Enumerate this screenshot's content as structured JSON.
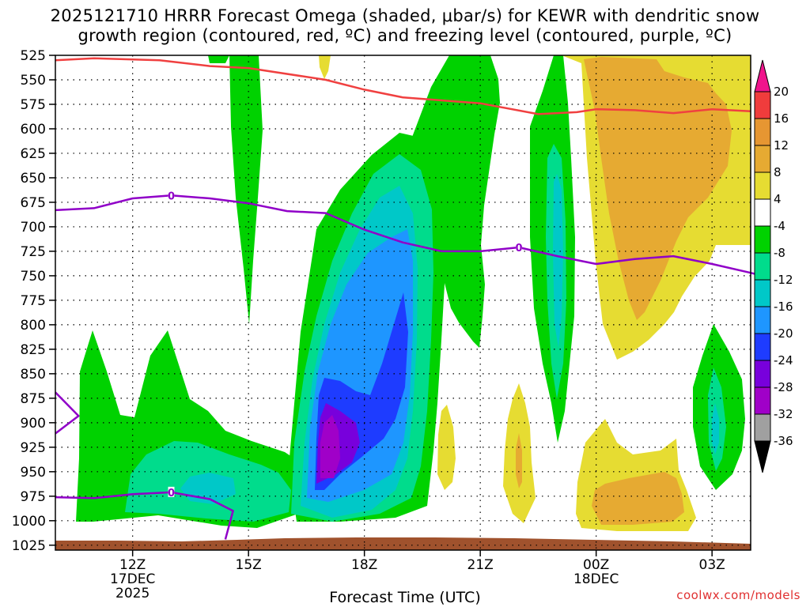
{
  "chart_data": {
    "type": "heatmap",
    "title_line1": "2025121710 HRRR Forecast Omega (shaded, μbar/s) for KEWR with dendritic snow",
    "title_line2": "growth region (contoured, red, ºC) and freezing level (contoured, purple, ºC)",
    "xlabel": "Forecast Time (UTC)",
    "credit": "coolwx.com/models",
    "x_range_hours": [
      10,
      28
    ],
    "x_ticks": [
      {
        "hour": 12,
        "label": "12Z",
        "sub1": "17DEC",
        "sub2": "2025"
      },
      {
        "hour": 15,
        "label": "15Z",
        "sub1": "",
        "sub2": ""
      },
      {
        "hour": 18,
        "label": "18Z",
        "sub1": "",
        "sub2": ""
      },
      {
        "hour": 21,
        "label": "21Z",
        "sub1": "",
        "sub2": ""
      },
      {
        "hour": 24,
        "label": "00Z",
        "sub1": "18DEC",
        "sub2": ""
      },
      {
        "hour": 27,
        "label": "03Z",
        "sub1": "",
        "sub2": ""
      }
    ],
    "y_range_mb": [
      525,
      1030
    ],
    "y_ticks": [
      525,
      550,
      575,
      600,
      625,
      650,
      675,
      700,
      725,
      750,
      775,
      800,
      825,
      850,
      875,
      900,
      925,
      950,
      975,
      1000,
      1025
    ],
    "colorbar": {
      "labels": [
        "20",
        "16",
        "12",
        "8",
        "4",
        "-4",
        "-8",
        "-12",
        "-16",
        "-20",
        "-24",
        "-28",
        "-32",
        "-36"
      ],
      "bins": [
        {
          "from": 16,
          "to": 20,
          "color": "#f03c3c"
        },
        {
          "from": 12,
          "to": 16,
          "color": "#e69632"
        },
        {
          "from": 8,
          "to": 12,
          "color": "#e6aa32"
        },
        {
          "from": 4,
          "to": 8,
          "color": "#e6dc32"
        },
        {
          "from": -4,
          "to": 4,
          "color": "#ffffff"
        },
        {
          "from": -8,
          "to": -4,
          "color": "#00d200"
        },
        {
          "from": -12,
          "to": -8,
          "color": "#00dc8c"
        },
        {
          "from": -16,
          "to": -12,
          "color": "#00c8c8"
        },
        {
          "from": -20,
          "to": -16,
          "color": "#1e96ff"
        },
        {
          "from": -24,
          "to": -20,
          "color": "#1e3cff"
        },
        {
          "from": -28,
          "to": -24,
          "color": "#7800dc"
        },
        {
          "from": -32,
          "to": -28,
          "color": "#a000c8"
        },
        {
          "from": -36,
          "to": -32,
          "color": "#a0a0a0"
        }
      ],
      "top_arrow_color": "#f0148c",
      "bottom_arrow_color": "#000000"
    },
    "series": [
      {
        "name": "dendritic growth region (-12 ºC)",
        "color": "#f04040",
        "points": [
          [
            10,
            530
          ],
          [
            11,
            528
          ],
          [
            12.7,
            530
          ],
          [
            14,
            536
          ],
          [
            15,
            538
          ],
          [
            17,
            550
          ],
          [
            18,
            560
          ],
          [
            19,
            568
          ],
          [
            21,
            574
          ],
          [
            22.5,
            585
          ],
          [
            23.5,
            583
          ],
          [
            24,
            580
          ],
          [
            25,
            581
          ],
          [
            26,
            584
          ],
          [
            27,
            580
          ],
          [
            28,
            582
          ]
        ]
      },
      {
        "name": "freezing level (0 ºC)",
        "color": "#9000c8",
        "label": "0",
        "points": [
          [
            10,
            683
          ],
          [
            11,
            681
          ],
          [
            12,
            671
          ],
          [
            13,
            668
          ],
          [
            14,
            671
          ],
          [
            15,
            676
          ],
          [
            16,
            684
          ],
          [
            17,
            686
          ],
          [
            18,
            703
          ],
          [
            19,
            716
          ],
          [
            20,
            725
          ],
          [
            21,
            725
          ],
          [
            22,
            721
          ],
          [
            23,
            730
          ],
          [
            24,
            738
          ],
          [
            25,
            733
          ],
          [
            26,
            730
          ],
          [
            27,
            738
          ],
          [
            28,
            747
          ],
          [
            28.5,
            752
          ]
        ]
      },
      {
        "name": "freezing level lower loop",
        "color": "#9000c8",
        "points": [
          [
            10,
            869
          ],
          [
            10.6,
            893
          ],
          [
            10,
            911
          ]
        ]
      },
      {
        "name": "freezing level surface contour",
        "color": "#9000c8",
        "label": "0",
        "points": [
          [
            10,
            976
          ],
          [
            11,
            977
          ],
          [
            12,
            973
          ],
          [
            13,
            971
          ],
          [
            14,
            978
          ],
          [
            14.6,
            990
          ],
          [
            14.4,
            1019
          ]
        ]
      }
    ],
    "shaded_regions": [
      {
        "bin": "-8 to -4",
        "color": "#00d200"
      },
      {
        "bin": "-12 to -8",
        "color": "#00dc8c"
      },
      {
        "bin": "-16 to -12",
        "color": "#00c8c8"
      },
      {
        "bin": "-20 to -16",
        "color": "#1e96ff"
      },
      {
        "bin": "-24 to -20",
        "color": "#1e3cff"
      },
      {
        "bin": "-28 to -24",
        "color": "#7800dc"
      },
      {
        "bin": "-32 to -28",
        "color": "#a000c8"
      },
      {
        "bin": "4 to 8",
        "color": "#e6dc32"
      },
      {
        "bin": "8 to 12",
        "color": "#e6aa32"
      },
      {
        "bin": "terrain",
        "color": "#a0522d"
      }
    ]
  }
}
